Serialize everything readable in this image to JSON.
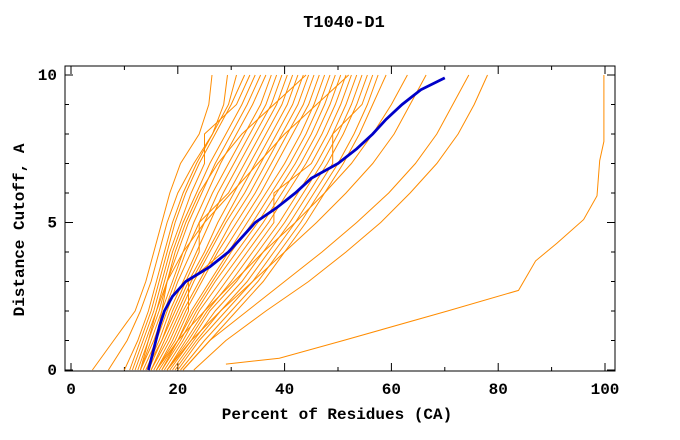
{
  "window": {
    "background": "#ffffff"
  },
  "chart_data": {
    "type": "line",
    "title": "T1040-D1",
    "xlabel": "Percent of Residues (CA)",
    "ylabel": "Distance Cutoff, A",
    "xlim": [
      0,
      100
    ],
    "ylim": [
      0,
      10
    ],
    "grid": false,
    "legend": "none",
    "axes": {
      "x": {
        "major_ticks": [
          0,
          20,
          40,
          60,
          80,
          100
        ],
        "minor_ticks": [
          10,
          30,
          50,
          70,
          90
        ],
        "major_labels": [
          "0",
          "20",
          "40",
          "60",
          "80",
          "100"
        ]
      },
      "y": {
        "major_ticks": [
          0,
          5,
          10
        ],
        "minor_ticks": [
          1,
          2,
          3,
          4,
          6,
          7,
          8,
          9
        ],
        "major_labels": [
          "0",
          "5",
          "10"
        ]
      }
    },
    "colors": {
      "models": "#ff8c00",
      "highlight": "#0000c8",
      "axis": "#000000",
      "background": "#ffffff"
    },
    "cutoff_levels": [
      0,
      1,
      2,
      3,
      4,
      5,
      6,
      7,
      8,
      9,
      10
    ],
    "model_curves": [
      [
        4,
        8,
        12,
        14,
        15.5,
        17,
        18.5,
        20.5,
        24,
        25.8,
        26.4
      ],
      [
        7,
        10.5,
        13,
        15,
        16.5,
        18,
        20,
        23,
        26.5,
        28.6,
        29.3
      ],
      [
        10,
        12.5,
        14.5,
        16,
        17.5,
        19,
        21,
        23.5,
        26.5,
        29.5,
        31
      ],
      [
        11,
        13,
        15,
        16.5,
        18,
        19.5,
        21.5,
        24,
        27,
        30,
        32.5
      ],
      [
        11.5,
        13.5,
        15.5,
        17,
        18.5,
        20.5,
        22.5,
        25,
        25,
        31,
        33.5
      ],
      [
        12,
        14,
        16,
        17.5,
        19,
        21,
        23.5,
        26,
        29,
        32,
        34.5
      ],
      [
        12.5,
        14.5,
        16.5,
        18,
        20,
        22,
        24.5,
        27,
        30,
        33,
        35.5
      ],
      [
        13,
        15,
        17,
        19,
        21,
        23,
        25.5,
        28,
        31,
        34,
        36.5
      ],
      [
        13,
        15.5,
        17.5,
        19.5,
        21.5,
        24,
        26.5,
        29.5,
        32.5,
        35.5,
        37.5
      ],
      [
        13.5,
        16,
        18,
        20,
        22.5,
        25,
        27.5,
        30.5,
        33.5,
        36.5,
        38.5
      ],
      [
        14,
        16.5,
        18.5,
        21,
        23.5,
        26,
        28.5,
        31.5,
        34.5,
        37.5,
        39.5
      ],
      [
        14,
        17,
        19,
        21.5,
        24,
        24,
        29.5,
        32.5,
        35.5,
        38.5,
        40.5
      ],
      [
        14.5,
        17,
        19.5,
        22,
        25,
        27.5,
        30.5,
        33.5,
        36.5,
        39.5,
        41.5
      ],
      [
        15,
        17.5,
        20,
        22.5,
        25.5,
        28.5,
        31.5,
        34.5,
        37.5,
        40.5,
        42.5
      ],
      [
        15,
        18,
        20.5,
        23,
        26,
        29,
        32.5,
        35.5,
        38.5,
        41.5,
        43.5
      ],
      [
        15.5,
        18.5,
        21,
        24,
        27,
        30,
        33.5,
        36.5,
        39.5,
        42.5,
        44.5
      ],
      [
        16,
        19,
        21.5,
        24.5,
        27.5,
        31,
        34.5,
        37.5,
        40.5,
        43.5,
        45.5
      ],
      [
        16,
        19.5,
        22,
        22,
        28.5,
        32,
        35.5,
        38.5,
        41.5,
        44.5,
        46.5
      ],
      [
        16.5,
        20,
        22.5,
        26,
        29.5,
        33,
        36.5,
        40,
        43,
        45.5,
        47.5
      ],
      [
        17,
        20,
        23,
        26.5,
        30,
        34,
        37.5,
        41,
        44,
        46.5,
        48.5
      ],
      [
        17,
        20.5,
        23.5,
        27,
        31,
        35,
        38.5,
        42,
        45,
        47.5,
        49.5
      ],
      [
        17.5,
        21,
        24,
        28,
        32,
        36,
        39.5,
        43,
        46,
        48.5,
        50.5
      ],
      [
        18,
        21.5,
        25,
        29,
        33,
        37,
        40.5,
        44,
        47,
        49.5,
        51.5
      ],
      [
        18,
        22,
        25.5,
        30,
        34,
        38,
        38,
        45,
        48,
        50.5,
        52.5
      ],
      [
        18.5,
        22.5,
        26,
        31,
        35,
        39,
        42.5,
        46,
        49,
        51.5,
        53.5
      ],
      [
        19,
        23,
        27,
        32,
        36,
        40,
        43.5,
        47,
        50,
        52.5,
        54.5
      ],
      [
        19.5,
        23.5,
        28,
        33,
        37,
        41,
        44.5,
        48,
        51,
        53.5,
        55.5
      ],
      [
        20,
        24,
        29,
        34,
        38,
        42,
        45.5,
        49,
        49,
        54.5,
        56.5
      ],
      [
        20.5,
        25,
        30,
        35,
        39,
        43,
        46.5,
        50,
        53,
        55.5,
        57.5
      ],
      [
        21,
        26,
        31,
        36,
        40,
        44,
        47.5,
        51,
        54,
        56.5,
        59
      ],
      [
        14.5,
        16,
        17,
        18,
        19.5,
        21.5,
        24,
        27.5,
        32,
        38,
        44
      ],
      [
        13,
        14.5,
        16,
        18,
        21,
        25,
        30,
        35,
        40,
        46,
        52
      ],
      [
        16,
        20,
        25,
        30.5,
        36,
        42,
        47.5,
        52.5,
        56.5,
        60,
        63
      ],
      [
        18,
        22.5,
        28,
        34,
        40,
        46,
        51.5,
        56.5,
        60.5,
        63.5,
        66.5
      ],
      [
        21,
        26,
        33,
        40,
        47,
        53.5,
        59.5,
        64.5,
        68.5,
        71.5,
        74.5
      ],
      [
        23,
        29,
        36.5,
        44.5,
        51.5,
        58,
        63.5,
        68.5,
        72.5,
        75.5,
        78
      ]
    ],
    "outlier_curve": {
      "name": "far-right-model",
      "points": [
        [
          29,
          0.2
        ],
        [
          39,
          0.4
        ],
        [
          51,
          1
        ],
        [
          70.5,
          2
        ],
        [
          83.8,
          2.7
        ],
        [
          87,
          3.7
        ],
        [
          91,
          4.3
        ],
        [
          96,
          5.1
        ],
        [
          98.5,
          5.9
        ],
        [
          99,
          7.1
        ],
        [
          99.8,
          7.75
        ],
        [
          99.8,
          10
        ]
      ]
    },
    "highlight_curve": {
      "name": "highlighted-model",
      "color": "#0000c8",
      "points": [
        [
          14.5,
          0
        ],
        [
          15.2,
          0.5
        ],
        [
          15.9,
          1
        ],
        [
          16.6,
          1.5
        ],
        [
          17.5,
          2
        ],
        [
          19,
          2.5
        ],
        [
          21.5,
          3
        ],
        [
          26,
          3.5
        ],
        [
          29.5,
          4
        ],
        [
          32,
          4.5
        ],
        [
          34.5,
          5
        ],
        [
          38.5,
          5.5
        ],
        [
          42,
          6
        ],
        [
          45,
          6.5
        ],
        [
          50,
          7
        ],
        [
          53.5,
          7.5
        ],
        [
          56.5,
          8
        ],
        [
          59,
          8.5
        ],
        [
          62,
          9
        ],
        [
          65.5,
          9.5
        ],
        [
          70,
          9.9
        ]
      ]
    }
  }
}
